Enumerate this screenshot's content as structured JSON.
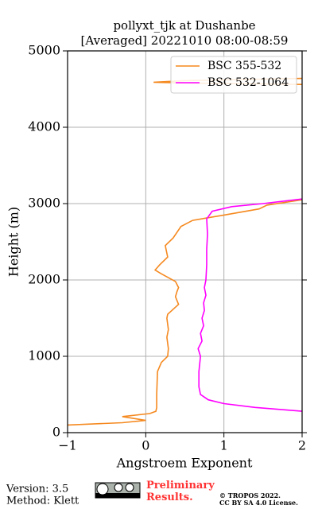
{
  "chart_data": {
    "type": "line",
    "title": "pollyxt_tjk at Dushanbe",
    "subtitle": "[Averaged] 20221010 08:00-08:59",
    "xlabel": "Angstroem Exponent",
    "ylabel": "Height (m)",
    "xlim": [
      -1,
      2
    ],
    "ylim": [
      0,
      5000
    ],
    "xticks": [
      {
        "value": -1,
        "label": "−1"
      },
      0,
      1,
      2
    ],
    "yticks": [
      0,
      1000,
      2000,
      3000,
      4000,
      5000
    ],
    "grid": true,
    "legend": "upper right",
    "series": [
      {
        "name": "BSC 355-532",
        "color": "#f5891f",
        "x": [
          -1,
          -0.3,
          0,
          -0.3,
          0.05,
          0.13,
          0.14,
          0.14,
          0.15,
          0.2,
          0.28,
          0.29,
          0.27,
          0.29,
          0.27,
          0.28,
          0.42,
          0.38,
          0.4,
          0.42,
          0.38,
          0.2,
          0.12,
          0.18,
          0.28,
          0.25,
          0.35,
          0.45,
          0.6,
          1.0,
          1.45,
          1.55,
          2.0,
          null,
          2.0,
          0.5,
          0.1,
          0.5,
          2.0
        ],
        "y": [
          100,
          130,
          160,
          210,
          250,
          280,
          330,
          500,
          800,
          920,
          1000,
          1100,
          1250,
          1350,
          1500,
          1550,
          1680,
          1780,
          1850,
          1900,
          1980,
          2080,
          2130,
          2200,
          2300,
          2450,
          2550,
          2700,
          2780,
          2850,
          2930,
          2980,
          3050,
          null,
          4640,
          4610,
          4590,
          4580,
          4560
        ]
      },
      {
        "name": "BSC 532-1064",
        "color": "#ff00ff",
        "x": [
          2,
          1.4,
          1.0,
          0.8,
          0.7,
          0.68,
          0.68,
          0.7,
          0.67,
          0.72,
          0.7,
          0.74,
          0.72,
          0.75,
          0.74,
          0.77,
          0.75,
          0.77,
          0.78,
          0.78,
          0.79,
          0.78,
          0.85,
          1.1,
          1.5,
          2
        ],
        "y": [
          280,
          330,
          380,
          430,
          500,
          600,
          800,
          1000,
          1100,
          1200,
          1300,
          1400,
          1500,
          1600,
          1700,
          1800,
          1900,
          2000,
          2200,
          2400,
          2600,
          2800,
          2900,
          2960,
          3000,
          3060
        ]
      }
    ]
  },
  "footer": {
    "version": "Version: 3.5",
    "method": "Method: Klett",
    "preliminary": "Preliminary Results.",
    "copyright": "© TROPOS 2022.",
    "license": "CC BY SA 4.0 License."
  }
}
